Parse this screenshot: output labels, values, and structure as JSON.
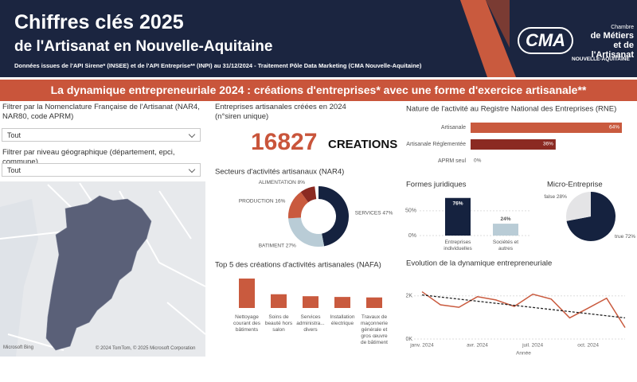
{
  "header": {
    "title": "Chiffres clés 2025",
    "subtitle": "de l'Artisanat en Nouvelle-Aquitaine",
    "source": "Données issues de l'API Sirene* (INSEE) et de l'API Entreprise** (INPI) au 31/12/2024 - Traitement Pôle Data Marketing (CMA Nouvelle-Aquitaine)"
  },
  "logo": {
    "mark": "CMA",
    "lines": [
      "Chambre",
      "de Métiers",
      "et de l'Artisanat"
    ],
    "region": "NOUVELLE-AQUITAINE"
  },
  "banner": "La dynamique entrepreneuriale 2024 : créations d'entreprises* avec une forme d'exercice artisanale**",
  "filters": [
    {
      "label": "Filtrer par la Nomenclature Française de l'Artisanat (NAR4, NAR80, code APRM)",
      "value": "Tout"
    },
    {
      "label": "Filtrer par niveau géographique (département, epci, commune)",
      "value": "Tout"
    }
  ],
  "map": {
    "brand": "Microsoft Bing",
    "attribution": "© 2024 TomTom, © 2025 Microsoft Corporation"
  },
  "kpi": {
    "label": "Entreprises artisanales créées en 2024 (n°siren unique)",
    "value": 16827,
    "unit": "CREATIONS"
  },
  "charts": [
    {
      "type": "donut",
      "title": "Secteurs d'activités artisanaux (NAR4)",
      "categories": [
        "SERVICES",
        "BATIMENT",
        "PRODUCTION",
        "ALIMENTATION"
      ],
      "values": [
        47,
        27,
        16,
        8
      ],
      "value_labels": [
        "47%",
        "27%",
        "16%",
        "8%"
      ],
      "colors": [
        "#15223f",
        "#b9ccd6",
        "#c95a3e",
        "#8b2a22"
      ]
    },
    {
      "type": "bar",
      "title": "Top 5 des créations d'activités artisanales (NAFA)",
      "categories": [
        "Nettoyage courant des bâtiments",
        "Soins de beauté hors salon",
        "Services administra... divers",
        "Installation électrique",
        "Travaux de maçonnerie générale et gros œuvre de bâtiment"
      ],
      "values": [
        1200,
        560,
        480,
        450,
        430
      ],
      "color": "#c95a3e"
    },
    {
      "type": "hbar",
      "title": "Nature de l'activité au Registre National des Entreprises (RNE)",
      "categories": [
        "Artisanale",
        "Artisanale Réglementée",
        "APRM seul"
      ],
      "values": [
        64,
        36,
        0
      ],
      "value_labels": [
        "64%",
        "36%",
        "0%"
      ],
      "colors": [
        "#c95a3e",
        "#8b2a22",
        "#8b2a22"
      ]
    },
    {
      "type": "column",
      "title": "Formes juridiques",
      "categories": [
        "Entreprises individuelles",
        "Sociétés et autres"
      ],
      "values": [
        76,
        24
      ],
      "value_labels": [
        "76%",
        "24%"
      ],
      "colors": [
        "#15223f",
        "#b9ccd6"
      ],
      "ylim": [
        0,
        82
      ],
      "yticks": [
        {
          "value": 0,
          "label": "0%"
        },
        {
          "value": 50,
          "label": "50%"
        }
      ],
      "grid": true
    },
    {
      "type": "pie",
      "title": "Micro-Entreprise",
      "categories": [
        "true",
        "false"
      ],
      "values": [
        72,
        28
      ],
      "value_labels": [
        "72%",
        "28%"
      ],
      "colors": [
        "#15223f",
        "#e4e4e6"
      ]
    },
    {
      "type": "line",
      "title": "Evolution de la dynamique entrepreneuriale",
      "x_label": "Année",
      "x": [
        "2024-01",
        "2024-02",
        "2024-03",
        "2024-04",
        "2024-05",
        "2024-06",
        "2024-07",
        "2024-08",
        "2024-09",
        "2024-10",
        "2024-11",
        "2024-12"
      ],
      "xticks": [
        {
          "value": "2024-01",
          "label": "janv. 2024"
        },
        {
          "value": "2024-04",
          "label": "avr. 2024"
        },
        {
          "value": "2024-07",
          "label": "juil. 2024"
        },
        {
          "value": "2024-10",
          "label": "oct. 2024"
        }
      ],
      "ylim": [
        0,
        2800
      ],
      "yticks": [
        {
          "value": 0,
          "label": "0K"
        },
        {
          "value": 2000,
          "label": "2K"
        }
      ],
      "grid": true,
      "series": [
        {
          "color": "#c95a3e",
          "values": [
            2190,
            1585,
            1470,
            1960,
            1810,
            1510,
            2075,
            1850,
            980,
            1430,
            1890,
            530
          ]
        },
        {
          "color": "#222222",
          "dashed": true,
          "values": [
            2040,
            1944,
            1848,
            1751,
            1655,
            1559,
            1462,
            1366,
            1270,
            1174,
            1077,
            980
          ]
        }
      ]
    }
  ]
}
